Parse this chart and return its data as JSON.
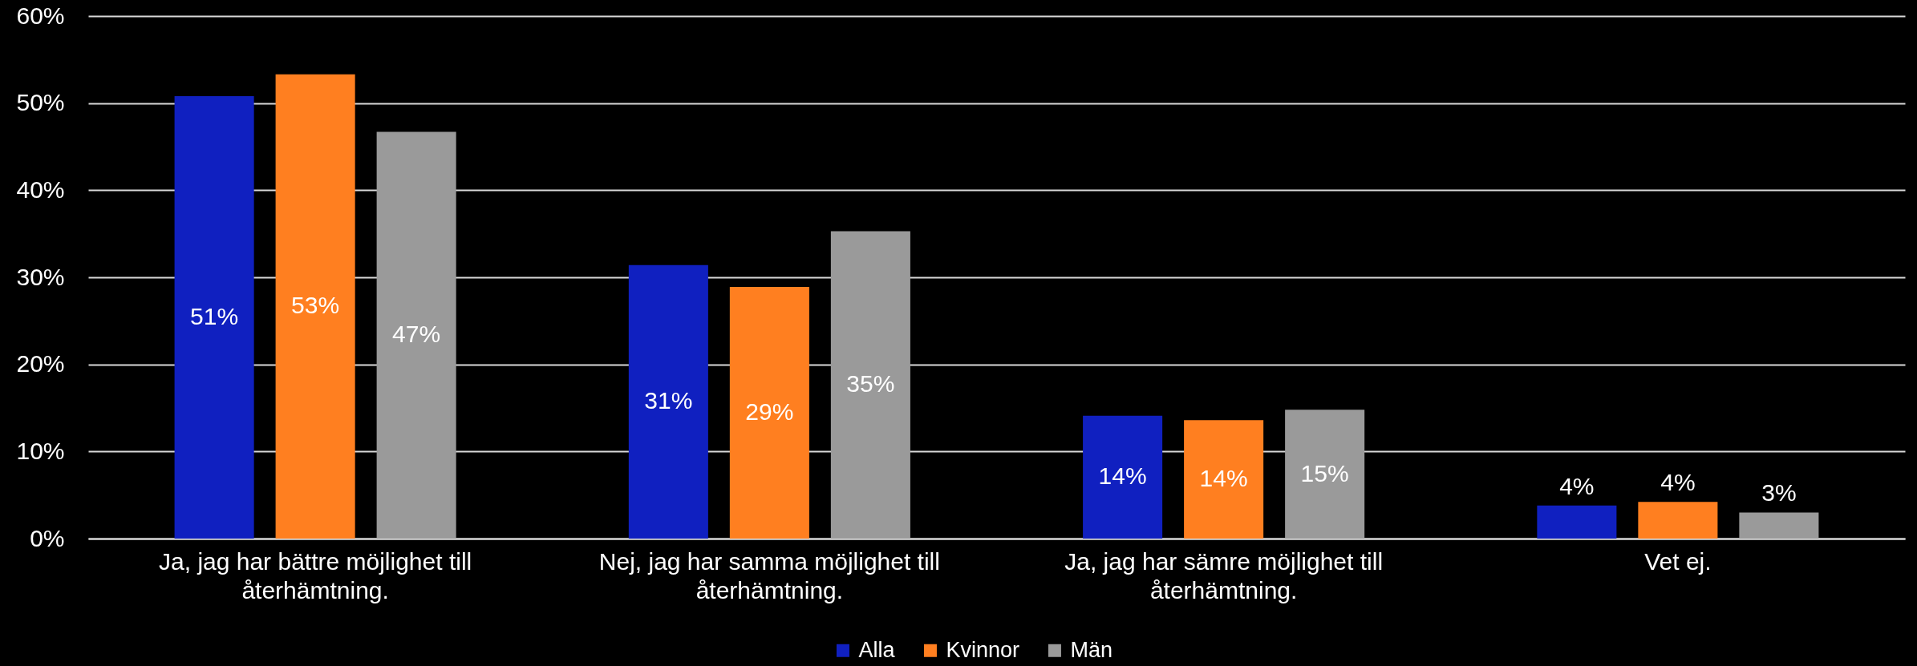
{
  "chart_data": {
    "type": "bar",
    "categories": [
      "Ja, jag har bättre möjlighet till återhämtning.",
      "Nej, jag har samma möjlighet till återhämtning.",
      "Ja, jag har sämre möjlighet till återhämtning.",
      "Vet ej."
    ],
    "series": [
      {
        "name": "Alla",
        "color": "#1020c0",
        "values": [
          50.8,
          31.4,
          14.1,
          3.8
        ],
        "value_labels": [
          "51%",
          "31%",
          "14%",
          "4%"
        ]
      },
      {
        "name": "Kvinnor",
        "color": "#ff7f20",
        "values": [
          53.3,
          28.9,
          13.6,
          4.2
        ],
        "value_labels": [
          "53%",
          "29%",
          "14%",
          "4%"
        ]
      },
      {
        "name": "Män",
        "color": "#9a9a9a",
        "values": [
          46.7,
          35.3,
          14.8,
          3.0
        ],
        "value_labels": [
          "47%",
          "35%",
          "15%",
          "3%"
        ]
      }
    ],
    "ylim": [
      0,
      60
    ],
    "yticks": [
      {
        "value": 0,
        "label": "0%"
      },
      {
        "value": 10,
        "label": "10%"
      },
      {
        "value": 20,
        "label": "20%"
      },
      {
        "value": 30,
        "label": "30%"
      },
      {
        "value": 40,
        "label": "40%"
      },
      {
        "value": 50,
        "label": "50%"
      },
      {
        "value": 60,
        "label": "60%"
      }
    ],
    "grid": "y",
    "legend": "bottom"
  }
}
